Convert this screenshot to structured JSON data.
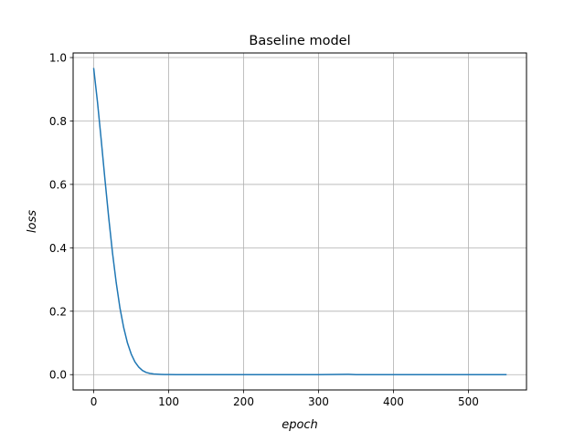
{
  "chart_data": {
    "type": "line",
    "title": "Baseline model",
    "xlabel": "epoch",
    "ylabel": "loss",
    "xlim": [
      -27.5,
      577.5
    ],
    "ylim": [
      -0.0483,
      1.0145
    ],
    "xticks": [
      0,
      100,
      200,
      300,
      400,
      500
    ],
    "yticks": [
      0.0,
      0.2,
      0.4,
      0.6,
      0.8,
      1.0
    ],
    "xtick_labels": [
      "0",
      "100",
      "200",
      "300",
      "400",
      "500"
    ],
    "ytick_labels": [
      "0.0",
      "0.2",
      "0.4",
      "0.6",
      "0.8",
      "1.0"
    ],
    "grid": true,
    "series": [
      {
        "color": "#1f77b4",
        "x": [
          0,
          5,
          10,
          15,
          20,
          25,
          30,
          35,
          40,
          45,
          50,
          55,
          60,
          65,
          70,
          75,
          80,
          85,
          90,
          95,
          100,
          110,
          120,
          150,
          200,
          250,
          300,
          340,
          350,
          400,
          450,
          500,
          550
        ],
        "y": [
          0.965,
          0.86,
          0.74,
          0.615,
          0.495,
          0.385,
          0.29,
          0.21,
          0.148,
          0.1,
          0.065,
          0.04,
          0.024,
          0.013,
          0.007,
          0.004,
          0.002,
          0.0012,
          0.0007,
          0.0004,
          0.0002,
          0.0001,
          0.0,
          0.0,
          0.0,
          0.0,
          0.0,
          0.001,
          0.0,
          0.0,
          0.0,
          0.0,
          0.0
        ]
      }
    ]
  }
}
